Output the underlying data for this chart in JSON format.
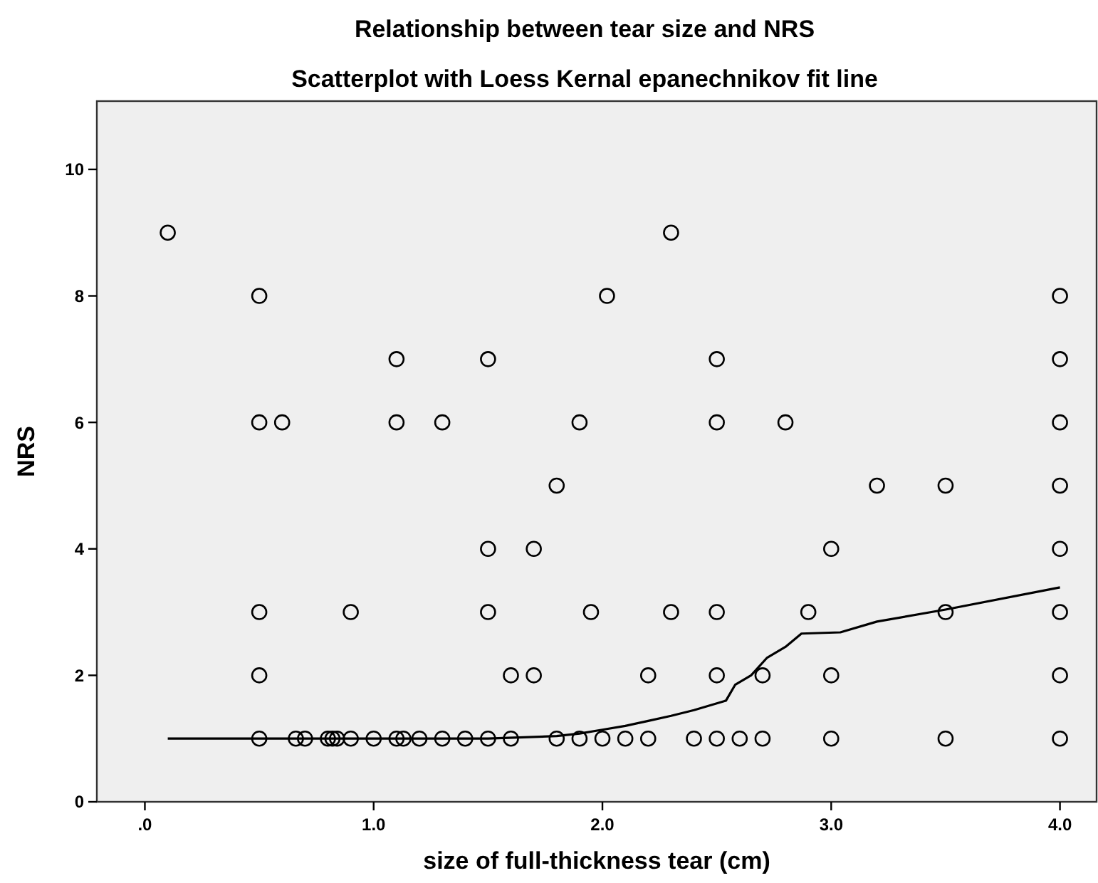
{
  "chart_data": {
    "type": "scatter",
    "title": "Relationship between tear size and NRS",
    "subtitle": "Scatterplot with Loess Kernal epanechnikov fit line",
    "xlabel": "size of full-thickness tear (cm)",
    "ylabel": "NRS",
    "xlim": [
      -0.21,
      4.16
    ],
    "ylim": [
      0,
      11.08
    ],
    "xticks": [
      {
        "value": 0,
        "label": ".0"
      },
      {
        "value": 1,
        "label": "1.0"
      },
      {
        "value": 2,
        "label": "2.0"
      },
      {
        "value": 3,
        "label": "3.0"
      },
      {
        "value": 4,
        "label": "4.0"
      }
    ],
    "yticks": [
      0,
      2,
      4,
      6,
      8,
      10
    ],
    "grid": false,
    "marker": "circle",
    "series": [
      {
        "color": "#000000",
        "x": [
          0.1,
          2.3,
          0.5,
          2.02,
          4.0,
          1.1,
          1.5,
          2.5,
          4.0,
          0.5,
          0.6,
          1.1,
          1.3,
          1.9,
          2.5,
          2.8,
          4.0,
          1.8,
          3.2,
          3.5,
          4.0,
          1.5,
          1.7,
          3.0,
          4.0,
          0.5,
          0.9,
          1.5,
          1.95,
          2.3,
          2.5,
          2.9,
          3.5,
          4.0,
          0.5,
          1.6,
          1.7,
          2.2,
          2.5,
          2.7,
          3.0,
          4.0,
          0.5,
          0.66,
          0.7,
          0.8,
          0.82,
          0.84,
          0.9,
          1.0,
          1.1,
          1.13,
          1.2,
          1.3,
          1.4,
          1.5,
          1.6,
          1.8,
          1.9,
          2.0,
          2.1,
          2.2,
          2.4,
          2.5,
          2.6,
          2.7,
          3.0,
          3.5,
          4.0
        ],
        "values": [
          9,
          9,
          8,
          8,
          8,
          7,
          7,
          7,
          7,
          6,
          6,
          6,
          6,
          6,
          6,
          6,
          6,
          5,
          5,
          5,
          5,
          4,
          4,
          4,
          4,
          3,
          3,
          3,
          3,
          3,
          3,
          3,
          3,
          3,
          2,
          2,
          2,
          2,
          2,
          2,
          2,
          2,
          1,
          1,
          1,
          1,
          1,
          1,
          1,
          1,
          1,
          1,
          1,
          1,
          1,
          1,
          1,
          1,
          1,
          1,
          1,
          1,
          1,
          1,
          1,
          1,
          1,
          1,
          1
        ]
      },
      {
        "type": "line",
        "color": "#000000",
        "marker": "none",
        "line_style": "solid",
        "x": [
          0.1,
          1.5,
          1.8,
          1.9,
          2.0,
          2.1,
          2.2,
          2.3,
          2.4,
          2.54,
          2.58,
          2.65,
          2.72,
          2.8,
          2.87,
          3.04,
          3.2,
          3.5,
          4.0
        ],
        "values": [
          1.0,
          1.0,
          1.04,
          1.08,
          1.14,
          1.2,
          1.28,
          1.36,
          1.45,
          1.6,
          1.85,
          2.0,
          2.28,
          2.45,
          2.66,
          2.68,
          2.85,
          3.04,
          3.39
        ]
      }
    ]
  }
}
